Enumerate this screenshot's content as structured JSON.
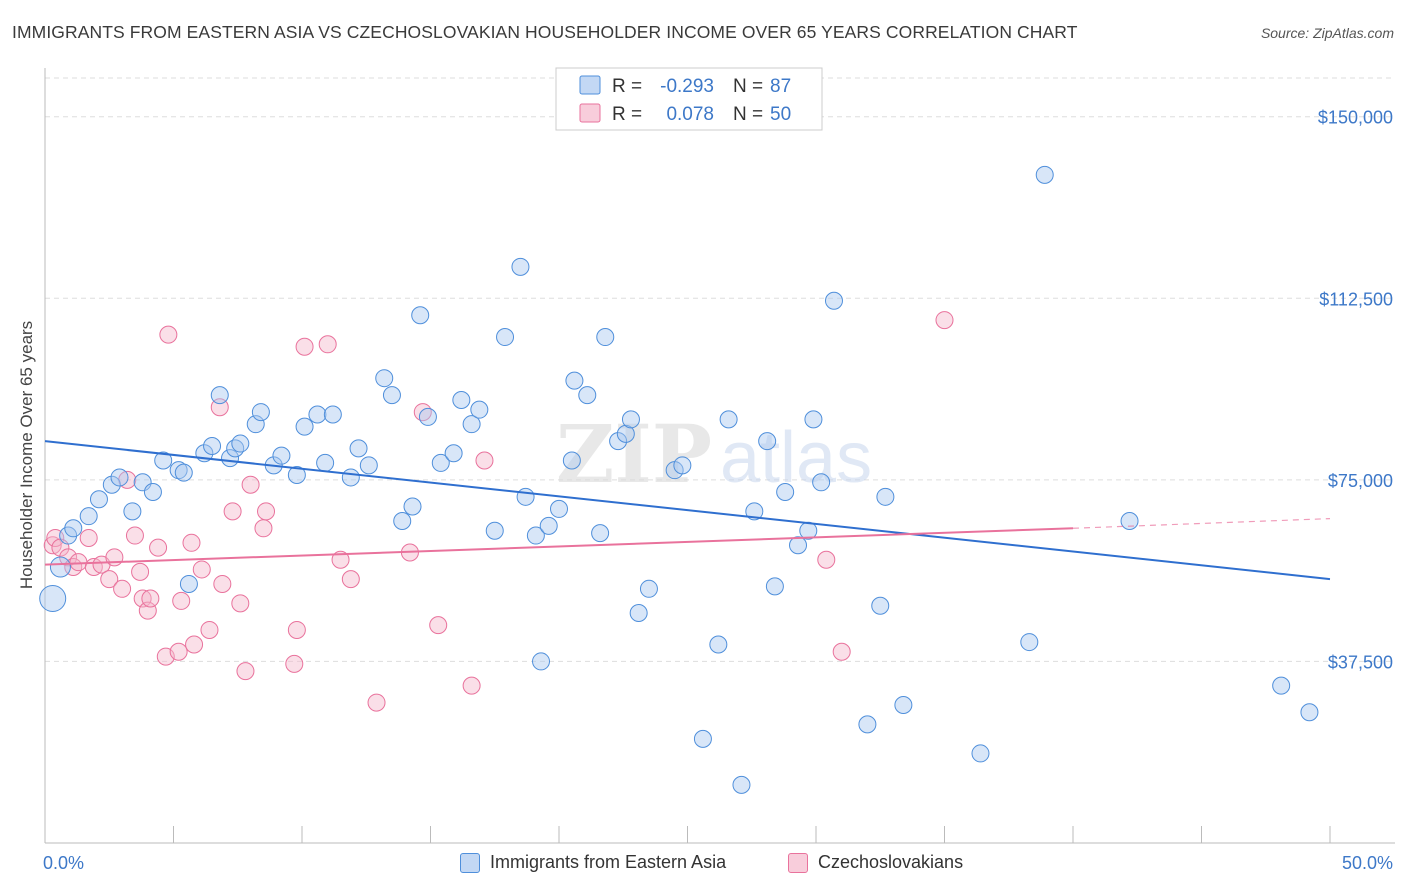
{
  "title": "IMMIGRANTS FROM EASTERN ASIA VS CZECHOSLOVAKIAN HOUSEHOLDER INCOME OVER 65 YEARS CORRELATION CHART",
  "source": "Source: ZipAtlas.com",
  "watermark": "ZIPatlas",
  "colors": {
    "blue": "#4f8fdb",
    "blue_fill": "#a9c8ef",
    "pink": "#e9729c",
    "pink_fill": "#f5b8cc",
    "tick_text": "#3d78c8",
    "grid": "#dddddd"
  },
  "legend": {
    "rows": [
      {
        "r_label": "R =",
        "r_value": "-0.293",
        "n_label": "N =",
        "n_value": "87"
      },
      {
        "r_label": "R =",
        "r_value": "0.078",
        "n_label": "N =",
        "n_value": "50"
      }
    ]
  },
  "bottom_legend": {
    "blue_label": "Immigrants from Eastern Asia",
    "pink_label": "Czechoslovakians"
  },
  "chart_data": {
    "type": "scatter",
    "title": "IMMIGRANTS FROM EASTERN ASIA VS CZECHOSLOVAKIAN HOUSEHOLDER INCOME OVER 65 YEARS CORRELATION CHART",
    "xlabel": "",
    "ylabel": "Householder Income Over 65 years",
    "xlim": [
      0,
      50
    ],
    "ylim": [
      0,
      158000
    ],
    "x_tick_labels": [
      "0.0%",
      "50.0%"
    ],
    "y_ticks": [
      37500,
      75000,
      112500,
      150000
    ],
    "y_tick_labels": [
      "$37,500",
      "$75,000",
      "$112,500",
      "$150,000"
    ],
    "grid": true,
    "legend_placement": "top-center",
    "series": [
      {
        "name": "Immigrants from Eastern Asia",
        "color": "#4f8fdb",
        "r": -0.293,
        "n": 87,
        "trend": {
          "x": [
            0,
            50
          ],
          "y": [
            83000,
            54500
          ]
        },
        "points": [
          [
            0.3,
            50500
          ],
          [
            0.6,
            57000
          ],
          [
            0.9,
            63500
          ],
          [
            1.1,
            65000
          ],
          [
            1.7,
            67500
          ],
          [
            2.1,
            71000
          ],
          [
            2.6,
            74000
          ],
          [
            2.9,
            75500
          ],
          [
            3.4,
            68500
          ],
          [
            3.8,
            74500
          ],
          [
            4.2,
            72500
          ],
          [
            4.6,
            79000
          ],
          [
            5.2,
            77000
          ],
          [
            5.4,
            76500
          ],
          [
            5.6,
            53500
          ],
          [
            6.2,
            80500
          ],
          [
            6.5,
            82000
          ],
          [
            6.8,
            92500
          ],
          [
            7.2,
            79500
          ],
          [
            7.4,
            81500
          ],
          [
            7.6,
            82500
          ],
          [
            8.2,
            86500
          ],
          [
            8.4,
            89000
          ],
          [
            8.9,
            78000
          ],
          [
            9.2,
            80000
          ],
          [
            9.8,
            76000
          ],
          [
            10.1,
            86000
          ],
          [
            10.6,
            88500
          ],
          [
            10.9,
            78500
          ],
          [
            11.2,
            88500
          ],
          [
            11.9,
            75500
          ],
          [
            12.2,
            81500
          ],
          [
            12.6,
            78000
          ],
          [
            13.2,
            96000
          ],
          [
            13.5,
            92500
          ],
          [
            13.9,
            66500
          ],
          [
            14.3,
            69500
          ],
          [
            14.6,
            109000
          ],
          [
            14.9,
            88000
          ],
          [
            15.4,
            78500
          ],
          [
            15.9,
            80500
          ],
          [
            16.2,
            91500
          ],
          [
            16.6,
            86500
          ],
          [
            16.9,
            89500
          ],
          [
            17.5,
            64500
          ],
          [
            17.9,
            104500
          ],
          [
            18.5,
            119000
          ],
          [
            18.7,
            71500
          ],
          [
            19.1,
            63500
          ],
          [
            19.3,
            37500
          ],
          [
            19.6,
            65500
          ],
          [
            20.0,
            69000
          ],
          [
            20.5,
            79000
          ],
          [
            20.6,
            95500
          ],
          [
            21.1,
            92500
          ],
          [
            21.6,
            64000
          ],
          [
            21.8,
            104500
          ],
          [
            22.3,
            83000
          ],
          [
            22.6,
            84500
          ],
          [
            22.8,
            87500
          ],
          [
            23.1,
            47500
          ],
          [
            23.5,
            52500
          ],
          [
            24.5,
            77000
          ],
          [
            24.8,
            78000
          ],
          [
            25.6,
            21500
          ],
          [
            26.2,
            41000
          ],
          [
            26.6,
            87500
          ],
          [
            27.1,
            12000
          ],
          [
            27.6,
            68500
          ],
          [
            28.1,
            83000
          ],
          [
            28.4,
            53000
          ],
          [
            28.8,
            72500
          ],
          [
            29.3,
            61500
          ],
          [
            29.7,
            64500
          ],
          [
            29.9,
            87500
          ],
          [
            30.2,
            74500
          ],
          [
            30.7,
            112000
          ],
          [
            32.0,
            24500
          ],
          [
            32.5,
            49000
          ],
          [
            32.7,
            71500
          ],
          [
            33.4,
            28500
          ],
          [
            36.4,
            18500
          ],
          [
            38.3,
            41500
          ],
          [
            38.9,
            138000
          ],
          [
            42.2,
            66500
          ],
          [
            48.1,
            32500
          ],
          [
            49.2,
            27000
          ]
        ]
      },
      {
        "name": "Czechoslovakians",
        "color": "#e9729c",
        "r": 0.078,
        "n": 50,
        "trend": {
          "x": [
            0,
            40
          ],
          "y": [
            57500,
            65000
          ]
        },
        "trend_dashed": {
          "x": [
            40,
            50
          ],
          "y": [
            65000,
            67000
          ]
        },
        "points": [
          [
            0.3,
            61500
          ],
          [
            0.4,
            63000
          ],
          [
            0.6,
            61000
          ],
          [
            0.9,
            59000
          ],
          [
            1.1,
            57000
          ],
          [
            1.3,
            58000
          ],
          [
            1.7,
            63000
          ],
          [
            1.9,
            57000
          ],
          [
            2.2,
            57500
          ],
          [
            2.5,
            54500
          ],
          [
            2.7,
            59000
          ],
          [
            3.0,
            52500
          ],
          [
            3.2,
            75000
          ],
          [
            3.5,
            63500
          ],
          [
            3.7,
            56000
          ],
          [
            3.8,
            50500
          ],
          [
            4.0,
            48000
          ],
          [
            4.1,
            50500
          ],
          [
            4.4,
            61000
          ],
          [
            4.7,
            38500
          ],
          [
            4.8,
            105000
          ],
          [
            5.2,
            39500
          ],
          [
            5.3,
            50000
          ],
          [
            5.7,
            62000
          ],
          [
            5.8,
            41000
          ],
          [
            6.1,
            56500
          ],
          [
            6.4,
            44000
          ],
          [
            6.8,
            90000
          ],
          [
            6.9,
            53500
          ],
          [
            7.3,
            68500
          ],
          [
            7.6,
            49500
          ],
          [
            7.8,
            35500
          ],
          [
            8.0,
            74000
          ],
          [
            8.5,
            65000
          ],
          [
            8.6,
            68500
          ],
          [
            9.7,
            37000
          ],
          [
            9.8,
            44000
          ],
          [
            10.1,
            102500
          ],
          [
            11.0,
            103000
          ],
          [
            11.5,
            58500
          ],
          [
            11.9,
            54500
          ],
          [
            12.9,
            29000
          ],
          [
            14.2,
            60000
          ],
          [
            14.7,
            89000
          ],
          [
            15.3,
            45000
          ],
          [
            16.6,
            32500
          ],
          [
            17.1,
            79000
          ],
          [
            30.4,
            58500
          ],
          [
            31.0,
            39500
          ],
          [
            35.0,
            108000
          ]
        ]
      }
    ]
  }
}
